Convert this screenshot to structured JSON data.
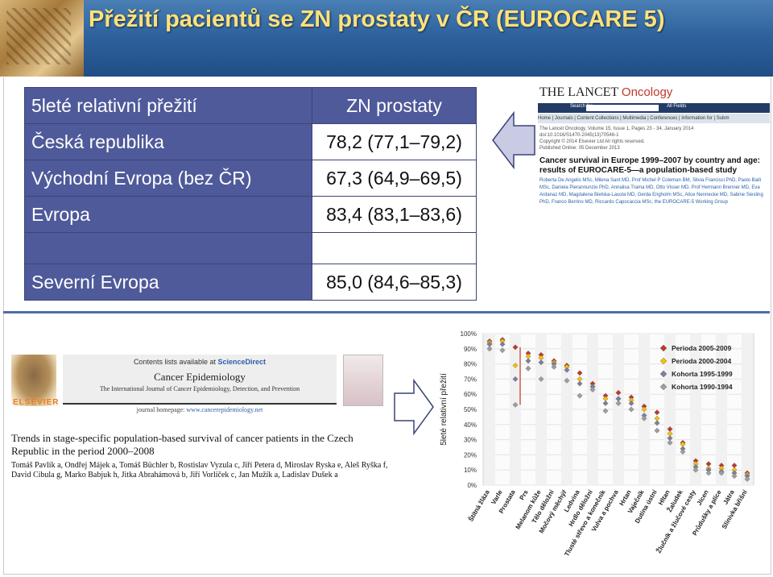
{
  "slide": {
    "title": "Přežití pacientů se ZN prostaty v ČR (EUROCARE 5)"
  },
  "table": {
    "header_label": "5leté relativní přežití",
    "header_value": "ZN prostaty",
    "rows": [
      {
        "label": "Česká republika",
        "value": "78,2 (77,1–79,2)"
      },
      {
        "label": "Východní Evropa (bez ČR)",
        "value": "67,3 (64,9–69,5)"
      },
      {
        "label": "Evropa",
        "value": "83,4 (83,1–83,6)"
      },
      {
        "label": "",
        "value": ""
      },
      {
        "label": "Severní Evropa",
        "value": "85,0 (84,6–85,3)"
      }
    ]
  },
  "lancet": {
    "logo_main": "THE LANCET",
    "logo_sub": "Oncology",
    "search_label": "Search for",
    "search_scope": "All Fields",
    "nav": "Home  |  Journals  |  Content Collections  |  Multimedia  |  Conferences  |  Information for  |  Subm",
    "meta1": "The Lancet Oncology, Volume 15, Issue 1, Pages 23 - 34, January 2014",
    "meta2": "doi:10.1016/S1470-2045(13)70546-1",
    "meta3": "Copyright © 2014 Elsevier Ltd All rights reserved.",
    "meta4": "Published Online: 05 December 2013",
    "article_title": "Cancer survival in Europe 1999–2007 by country and age: results of EUROCARE-5—a population-based study",
    "authors": "Roberta De Angelis MSc, Milena Sant MD, Prof Michel P Coleman BM, Silvia Francisci PhD, Paolo Baili MSc, Daniela Pierannunzio PhD, Annalisa Trama MD, Otto Visser MD, Prof Hermann Brenner MD, Eva Ardanaz MD, Magdalena Bielska-Lasota MD, Gerda Engholm MSc, Alice Nennecke MD, Sabine Siesling PhD, Franco Berrino MD, Riccardo Capocaccia MSc, the EUROCARE-5 Working Group"
  },
  "elsevier": {
    "contents": "Contents lists available at",
    "sciencedirect": "ScienceDirect",
    "journal": "Cancer Epidemiology",
    "journal_sub": "The International Journal of Cancer Epidemiology, Detection, and Prevention",
    "homepage_label": "journal homepage:",
    "homepage": "www.cancerepidemiology.net",
    "publisher": "ELSEVIER",
    "title": "Trends in stage-specific population-based survival of cancer patients in the Czech Republic in the period 2000–2008",
    "authors": "Tomáš Pavlík a, Ondřej Májek a, Tomáš Büchler b, Rostislav Vyzula c, Jiří Petera d, Miroslav Ryska e, Aleš Ryška f, David Cibula g, Marko Babjuk h, Jitka Abrahámová b, Jiří Vorlíček c, Jan Mužík a, Ladislav Dušek a"
  },
  "chart_data": {
    "type": "scatter",
    "ylabel": "5leté relativní přežití",
    "ylim": [
      0,
      100
    ],
    "yticks": [
      "0%",
      "10%",
      "20%",
      "30%",
      "40%",
      "50%",
      "60%",
      "70%",
      "80%",
      "90%",
      "100%"
    ],
    "categories": [
      "Štítná žláza",
      "Varle",
      "Prostata",
      "Prs",
      "Melanom kůže",
      "Tělo děložní",
      "Močový měchýř",
      "Ledvina",
      "Hrdlo děložní",
      "Tlusté střevo a konečník",
      "Vulva a pochva",
      "Hrtan",
      "Vaječník",
      "Dutina ústní",
      "Hltan",
      "Žaludek",
      "Žlučník a žlučové cesty",
      "Jícen",
      "Průdušky a plíce",
      "Játra",
      "Slinivka břišní"
    ],
    "series": [
      {
        "name": "Perioda 2005-2009",
        "color": "#c0392b",
        "marker": "diamond",
        "values": [
          95,
          96,
          91,
          87,
          86,
          82,
          79,
          74,
          67,
          59,
          61,
          58,
          52,
          48,
          37,
          28,
          16,
          14,
          13,
          13,
          8
        ]
      },
      {
        "name": "Perioda 2000-2004",
        "color": "#f2c200",
        "marker": "diamond",
        "values": [
          94,
          95,
          79,
          85,
          84,
          81,
          78,
          70,
          65,
          57,
          57,
          56,
          50,
          44,
          34,
          27,
          14,
          11,
          11,
          10,
          7
        ]
      },
      {
        "name": "Kohorta 1995-1999",
        "color": "#7d7ea3",
        "marker": "diamond",
        "values": [
          93,
          93,
          70,
          82,
          81,
          80,
          76,
          67,
          65,
          54,
          57,
          54,
          46,
          41,
          31,
          24,
          12,
          10,
          9,
          8,
          6
        ]
      },
      {
        "name": "Kohorta 1990-1994",
        "color": "#9e9e9e",
        "marker": "diamond",
        "values": [
          90,
          89,
          53,
          77,
          70,
          78,
          69,
          59,
          63,
          49,
          54,
          50,
          44,
          36,
          28,
          22,
          10,
          8,
          8,
          6,
          4
        ]
      }
    ],
    "legend_position": "top-right",
    "grid": true
  }
}
